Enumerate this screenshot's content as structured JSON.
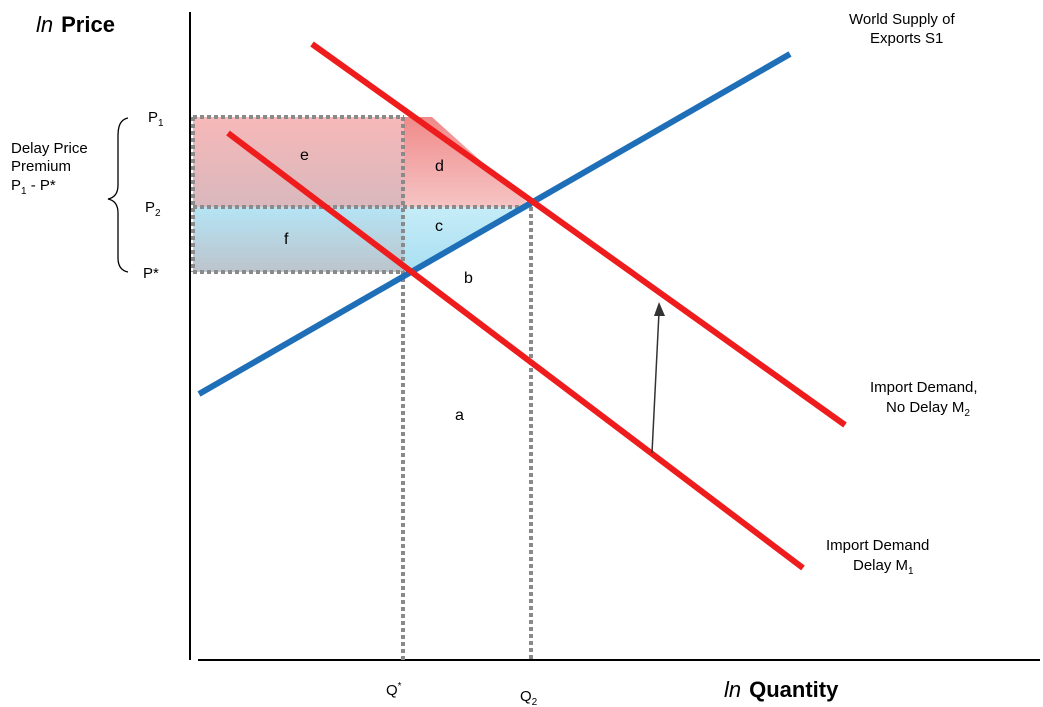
{
  "axes": {
    "y_title_italic": "ln",
    "y_title_bold": "Price",
    "x_title_italic": "ln",
    "x_title_bold": "Quantity"
  },
  "price_ticks": {
    "p1_base": "P",
    "p1_sub": "1",
    "p2_base": "P",
    "p2_sub": "2",
    "pstar": "P*"
  },
  "quantity_ticks": {
    "qstar_base": "Q",
    "qstar_sup": "*",
    "q2_base": "Q",
    "q2_sub": "2"
  },
  "premium_label": {
    "line1": "Delay Price",
    "line2": "Premium",
    "line3_p": "P",
    "line3_sub": "1",
    "line3_rest": " - P*"
  },
  "curves": {
    "supply": {
      "line1": "World Supply of",
      "line2": "Exports S1",
      "color": "#1f6fb8"
    },
    "demand_no_delay": {
      "line1": "Import Demand,",
      "line2_text": "No Delay M",
      "line2_sub": "2",
      "color": "#ee1c1c"
    },
    "demand_delay": {
      "line1": "Import Demand",
      "line2_text": "Delay M",
      "line2_sub": "1",
      "color": "#ee1c1c"
    }
  },
  "areas": {
    "a": "a",
    "b": "b",
    "c": "c",
    "d": "d",
    "e": "e",
    "f": "f",
    "pink": "#f4b0b0",
    "blue": "#a9dff2"
  }
}
